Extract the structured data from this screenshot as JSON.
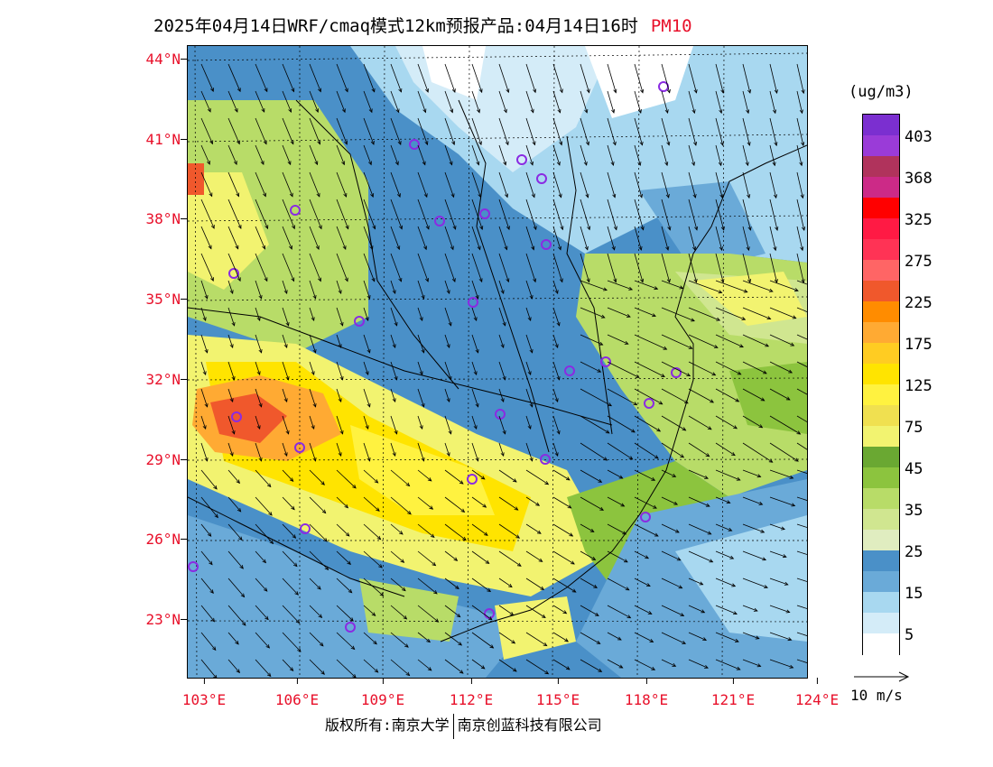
{
  "header": {
    "title": "2025年04月14日WRF/cmaq模式12km预报产品:04月14日16时",
    "variable": "PM10"
  },
  "map": {
    "lat_labels": [
      "44°N",
      "41°N",
      "38°N",
      "35°N",
      "32°N",
      "29°N",
      "26°N",
      "23°N"
    ],
    "lon_labels": [
      "103°E",
      "106°E",
      "109°E",
      "112°E",
      "115°E",
      "118°E",
      "121°E",
      "124°E"
    ]
  },
  "legend": {
    "unit": "(ug/m3)",
    "labels": [
      "403",
      "368",
      "325",
      "275",
      "225",
      "175",
      "125",
      "75",
      "45",
      "35",
      "25",
      "15",
      "5"
    ],
    "colors": [
      "#7b2fd0",
      "#9a3bd8",
      "#b0335c",
      "#cc2a87",
      "#ff0000",
      "#ff1a44",
      "#ff3355",
      "#ff6565",
      "#f0582c",
      "#ff8c00",
      "#ffaa33",
      "#ffcc22",
      "#ffe400",
      "#fff240",
      "#f0e050",
      "#f2f370",
      "#6aa832",
      "#8cc43e",
      "#b8dc68",
      "#d0e690",
      "#e0edc0",
      "#4a90c8",
      "#6aaad8",
      "#a8d8f0",
      "#d4ecf8",
      "#ffffff"
    ]
  },
  "wind_reference": {
    "label": "10 m/s"
  },
  "footer": {
    "copyright": "版权所有:南京大学",
    "company": "南京创蓝科技有限公司"
  }
}
